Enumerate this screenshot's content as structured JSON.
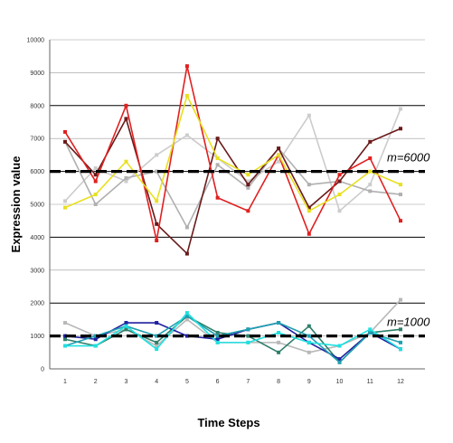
{
  "chart_data": {
    "type": "line",
    "title": "",
    "xlabel": "Time Steps",
    "ylabel": "Expression value",
    "ylim": [
      0,
      10000
    ],
    "x": [
      1,
      2,
      3,
      4,
      5,
      6,
      7,
      8,
      9,
      10,
      11,
      12
    ],
    "x_tick_labels": [
      "1",
      "2",
      "3",
      "4",
      "5",
      "6",
      "7",
      "8",
      "9",
      "10",
      "11",
      "12"
    ],
    "y_ticks": [
      0,
      1000,
      2000,
      3000,
      4000,
      5000,
      6000,
      7000,
      8000,
      9000,
      10000
    ],
    "grid": true,
    "legend": "none",
    "reference_lines": [
      {
        "y": 6000,
        "label": "m=6000"
      },
      {
        "y": 1000,
        "label": "m=1000"
      }
    ],
    "series": [
      {
        "color": "#cccccc",
        "values": [
          5100,
          6100,
          5700,
          6500,
          7100,
          6400,
          5700,
          6300,
          7700,
          4800,
          5600,
          7900
        ]
      },
      {
        "color": "#b0b0b0",
        "values": [
          6900,
          5000,
          5800,
          6000,
          4300,
          6200,
          5500,
          6700,
          5600,
          5700,
          5400,
          5300
        ]
      },
      {
        "color": "#6b1a1a",
        "values": [
          6900,
          5900,
          7600,
          4400,
          3500,
          7000,
          5600,
          6700,
          4900,
          5700,
          6900,
          7300
        ]
      },
      {
        "color": "#e02020",
        "values": [
          7200,
          5700,
          8000,
          3900,
          9200,
          5200,
          4800,
          6500,
          4100,
          5900,
          6400,
          4500
        ]
      },
      {
        "color": "#e8e020",
        "values": [
          4900,
          5300,
          6300,
          5100,
          8300,
          6400,
          5900,
          6500,
          4800,
          5300,
          6000,
          5600
        ]
      },
      {
        "color": "#b8b8b8",
        "values": [
          1400,
          1000,
          1200,
          700,
          1500,
          800,
          800,
          800,
          500,
          700,
          1100,
          2100
        ]
      },
      {
        "color": "#2f7f6a",
        "values": [
          900,
          700,
          1200,
          800,
          1600,
          1100,
          1000,
          500,
          1300,
          200,
          1100,
          1200
        ]
      },
      {
        "color": "#2020a0",
        "values": [
          1000,
          900,
          1400,
          1400,
          1000,
          900,
          1200,
          1400,
          800,
          300,
          1100,
          600
        ]
      },
      {
        "color": "#20a0b0",
        "values": [
          700,
          1000,
          1300,
          1000,
          1600,
          1000,
          1200,
          1400,
          1000,
          200,
          1100,
          800
        ]
      },
      {
        "color": "#20e0e0",
        "values": [
          700,
          700,
          1300,
          600,
          1700,
          800,
          800,
          1100,
          800,
          700,
          1200,
          600
        ]
      }
    ]
  }
}
